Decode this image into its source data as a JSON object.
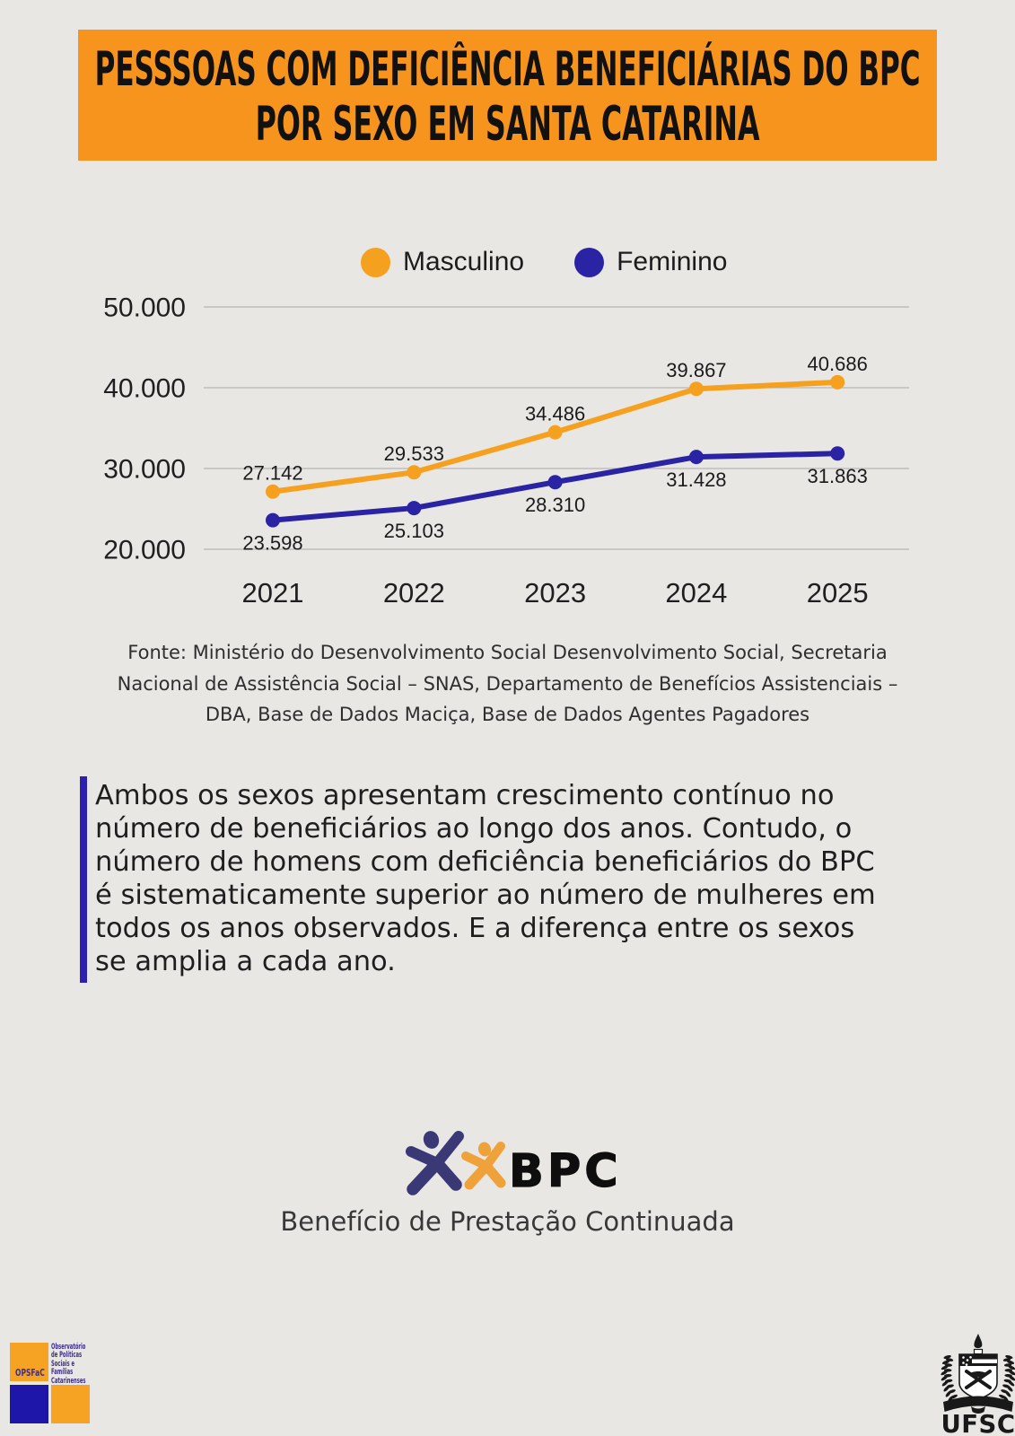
{
  "page": {
    "background": "#e8e7e4"
  },
  "header": {
    "background": "#f7941e",
    "text_color": "#111111",
    "title_lines": [
      "PESSSOAS COM DEFICIÊNCIA BENEFICIÁRIAS DO BPC",
      "POR SEXO EM SANTA CATARINA"
    ]
  },
  "chart_data": {
    "type": "line",
    "x": [
      "2021",
      "2022",
      "2023",
      "2024",
      "2025"
    ],
    "series": [
      {
        "name": "Masculino",
        "color": "#f6a01f",
        "values": [
          27142,
          29533,
          34486,
          39867,
          40686
        ],
        "label_position": "above"
      },
      {
        "name": "Feminino",
        "color": "#2a23a4",
        "values": [
          23598,
          25103,
          28310,
          31428,
          31863
        ],
        "label_position": "below"
      }
    ],
    "ylim": [
      20000,
      50000
    ],
    "yticks": [
      50000,
      40000,
      30000,
      20000
    ],
    "grid": true,
    "legend_position": "top",
    "data_labels": true,
    "number_format": "thousands-dot"
  },
  "source_note": {
    "lines": [
      "Fonte: Ministério do Desenvolvimento Social Desenvolvimento Social, Secretaria",
      "Nacional de Assistência Social – SNAS, Departamento de Benefícios Assistenciais –",
      "DBA, Base de Dados Maciça, Base de Dados Agentes Pagadores"
    ]
  },
  "callout": {
    "accent_color": "#2b21ae",
    "lines": [
      "Ambos os sexos apresentam crescimento contínuo no",
      "número de beneficiários ao longo dos anos. Contudo, o",
      "número de homens com deficiência beneficiários do BPC",
      "é sistematicamente superior ao número de mulheres em",
      "todos os anos observados. E a diferença entre os sexos",
      "se amplia a cada ano."
    ]
  },
  "bpc": {
    "label": "BPC",
    "subtitle": "Benefício de Prestação Continuada",
    "figure_blue": "#3a3875",
    "figure_orange": "#efa23a"
  },
  "footer": {
    "opsfac": {
      "acronym": "OPSFaC",
      "name_lines": [
        "Observatório",
        "de Políticas",
        "Sociais e",
        "Famílias",
        "Catarinenses"
      ],
      "orange": "#f6a222",
      "blue": "#1d16a8",
      "text_color": "#3d2e85"
    },
    "ufsc": {
      "label": "UFSC",
      "color": "#191919"
    }
  }
}
